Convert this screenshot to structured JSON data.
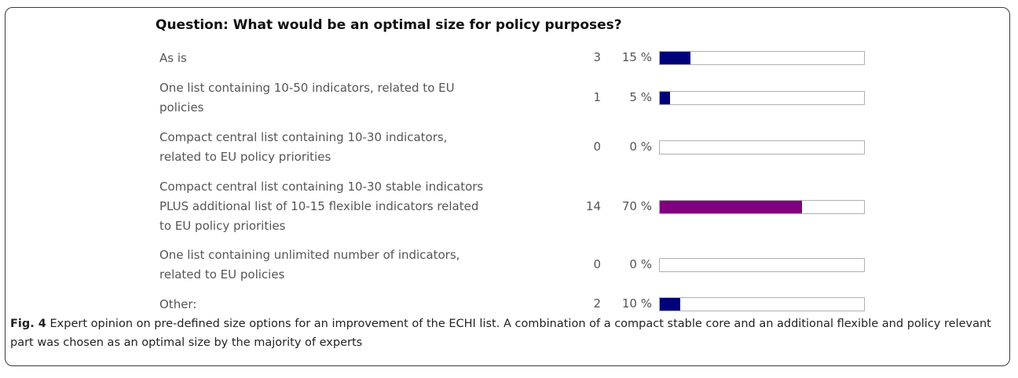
{
  "question": "Question: What would be an optimal size for policy purposes?",
  "chart_data": {
    "type": "bar",
    "orientation": "horizontal",
    "title": "Question: What would be an optimal size for policy purposes?",
    "xlim": [
      0,
      100
    ],
    "grid": false,
    "categories": [
      [
        "As is"
      ],
      [
        "One list containing 10-50 indicators, related to EU",
        "policies"
      ],
      [
        "Compact central list containing 10-30 indicators,",
        "related to EU policy priorities"
      ],
      [
        "Compact central list containing 10-30 stable indicators",
        "PLUS additional list of 10-15 flexible indicators related",
        "to EU policy priorities"
      ],
      [
        "One list containing unlimited number of indicators,",
        "related to EU policies"
      ],
      [
        "Other:"
      ]
    ],
    "counts": [
      "3",
      "1",
      "0",
      "14",
      "0",
      "2"
    ],
    "percent_labels": [
      "15 %",
      "5 %",
      "0 %",
      "70 %",
      "0 %",
      "10 %"
    ],
    "values": [
      15,
      5,
      0,
      70,
      0,
      10
    ],
    "bar_colors": [
      "#00007a",
      "#00007a",
      "#00007a",
      "#800080",
      "#00007a",
      "#00007a"
    ],
    "track_border_color": "#b0b0b0"
  },
  "caption": {
    "label": "Fig. 4",
    "text": " Expert opinion on pre-defined size options for an improvement of the ECHI list. A combination of a compact stable core and an additional flexible and policy relevant part was chosen as an optimal size by the majority of experts"
  }
}
